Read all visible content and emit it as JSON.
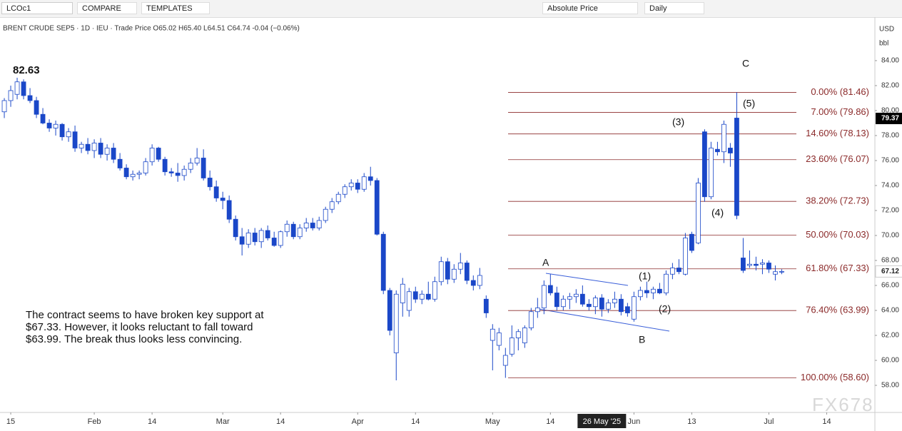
{
  "toolbar": {
    "symbol": "LCOc1",
    "compare": "COMPARE",
    "templates": "TEMPLATES",
    "price_mode": "Absolute Price",
    "interval": "Daily"
  },
  "legend_line": "BRENT CRUDE SEP5 · 1D · IEU · Trade Price O65.02 H65.40 L64.51 C64.74 -0.04 (−0.06%)",
  "currency": "USD",
  "unit": "bbl",
  "watermark": "FX678",
  "chart_data": {
    "type": "candlestick",
    "ohlc": [
      [
        79.9,
        81.0,
        79.4,
        80.8
      ],
      [
        80.8,
        82.0,
        80.3,
        81.6
      ],
      [
        81.3,
        82.63,
        80.9,
        82.3
      ],
      [
        82.3,
        82.5,
        80.9,
        81.2
      ],
      [
        81.2,
        81.8,
        80.6,
        80.8
      ],
      [
        80.8,
        81.1,
        79.4,
        79.7
      ],
      [
        79.7,
        80.2,
        78.9,
        79.0
      ],
      [
        79.0,
        79.3,
        78.3,
        78.6
      ],
      [
        78.6,
        79.2,
        78.0,
        78.9
      ],
      [
        78.9,
        79.0,
        77.6,
        77.9
      ],
      [
        77.9,
        78.6,
        77.5,
        78.3
      ],
      [
        78.3,
        78.8,
        76.7,
        77.0
      ],
      [
        77.0,
        77.5,
        76.6,
        77.3
      ],
      [
        77.3,
        77.8,
        76.5,
        76.8
      ],
      [
        76.8,
        77.7,
        76.2,
        77.4
      ],
      [
        77.4,
        77.8,
        76.2,
        76.5
      ],
      [
        76.5,
        77.3,
        76.0,
        77.0
      ],
      [
        77.0,
        77.4,
        75.8,
        76.1
      ],
      [
        76.1,
        76.6,
        75.2,
        75.4
      ],
      [
        75.4,
        75.7,
        74.5,
        74.7
      ],
      [
        74.7,
        75.2,
        74.4,
        74.9
      ],
      [
        74.9,
        75.2,
        74.5,
        75.0
      ],
      [
        75.0,
        76.2,
        74.8,
        75.9
      ],
      [
        75.9,
        77.3,
        75.6,
        77.0
      ],
      [
        77.0,
        77.1,
        75.9,
        76.1
      ],
      [
        76.1,
        76.3,
        74.8,
        75.1
      ],
      [
        75.1,
        75.4,
        74.7,
        75.0
      ],
      [
        75.0,
        75.8,
        74.3,
        74.8
      ],
      [
        74.8,
        75.6,
        74.4,
        75.3
      ],
      [
        75.3,
        76.2,
        75.0,
        75.8
      ],
      [
        75.8,
        77.0,
        75.6,
        76.2
      ],
      [
        76.2,
        76.9,
        74.4,
        74.6
      ],
      [
        74.6,
        75.2,
        73.6,
        73.9
      ],
      [
        73.9,
        74.4,
        72.7,
        73.0
      ],
      [
        73.0,
        73.5,
        72.1,
        72.8
      ],
      [
        72.8,
        73.2,
        71.0,
        71.3
      ],
      [
        71.3,
        71.6,
        69.6,
        69.9
      ],
      [
        69.9,
        70.6,
        68.4,
        69.3
      ],
      [
        69.3,
        70.5,
        69.0,
        70.2
      ],
      [
        70.2,
        70.6,
        69.2,
        69.5
      ],
      [
        69.5,
        70.6,
        69.0,
        70.4
      ],
      [
        70.4,
        70.8,
        69.6,
        69.8
      ],
      [
        69.8,
        70.3,
        69.1,
        69.2
      ],
      [
        69.2,
        70.4,
        69.0,
        70.3
      ],
      [
        70.3,
        71.2,
        69.9,
        70.9
      ],
      [
        70.9,
        71.1,
        69.7,
        69.9
      ],
      [
        69.9,
        70.9,
        69.7,
        70.6
      ],
      [
        70.6,
        71.4,
        70.3,
        71.0
      ],
      [
        71.0,
        71.4,
        70.4,
        70.6
      ],
      [
        70.6,
        71.5,
        70.4,
        71.2
      ],
      [
        71.2,
        72.3,
        71.0,
        72.1
      ],
      [
        72.1,
        73.0,
        71.8,
        72.7
      ],
      [
        72.7,
        73.5,
        72.5,
        73.3
      ],
      [
        73.3,
        74.1,
        73.0,
        73.9
      ],
      [
        73.9,
        74.5,
        73.6,
        74.2
      ],
      [
        74.2,
        74.5,
        73.4,
        73.7
      ],
      [
        73.7,
        75.0,
        73.5,
        74.7
      ],
      [
        74.7,
        75.5,
        74.0,
        74.4
      ],
      [
        74.4,
        74.6,
        70.0,
        70.1
      ],
      [
        70.1,
        70.3,
        65.3,
        65.6
      ],
      [
        65.6,
        65.8,
        62.0,
        62.4
      ],
      [
        60.6,
        65.6,
        58.4,
        65.3
      ],
      [
        64.6,
        66.6,
        63.5,
        66.1
      ],
      [
        64.0,
        65.8,
        63.5,
        65.5
      ],
      [
        65.5,
        65.9,
        64.6,
        64.9
      ],
      [
        64.9,
        65.6,
        64.5,
        65.3
      ],
      [
        65.3,
        66.3,
        64.8,
        64.9
      ],
      [
        64.9,
        66.7,
        64.7,
        66.3
      ],
      [
        66.3,
        68.3,
        66.0,
        67.9
      ],
      [
        67.9,
        68.2,
        66.1,
        66.5
      ],
      [
        66.5,
        67.7,
        66.2,
        67.3
      ],
      [
        67.3,
        68.6,
        66.9,
        67.8
      ],
      [
        67.8,
        68.0,
        66.1,
        66.4
      ],
      [
        66.4,
        66.8,
        65.6,
        66.0
      ],
      [
        66.0,
        67.4,
        65.7,
        66.8
      ],
      [
        64.9,
        65.2,
        63.4,
        63.8
      ],
      [
        61.6,
        62.9,
        59.2,
        62.5
      ],
      [
        61.2,
        62.6,
        60.8,
        62.2
      ],
      [
        59.6,
        61.0,
        58.6,
        60.4
      ],
      [
        60.5,
        62.8,
        60.3,
        61.8
      ],
      [
        61.8,
        62.5,
        60.8,
        62.3
      ],
      [
        61.4,
        62.8,
        61.0,
        62.6
      ],
      [
        62.6,
        64.2,
        62.4,
        63.9
      ],
      [
        63.9,
        65.0,
        63.4,
        64.2
      ],
      [
        64.2,
        66.4,
        63.7,
        66.0
      ],
      [
        66.0,
        66.9,
        65.2,
        65.4
      ],
      [
        65.4,
        65.9,
        64.0,
        64.3
      ],
      [
        64.3,
        65.2,
        64.0,
        64.9
      ],
      [
        64.9,
        65.4,
        64.1,
        65.1
      ],
      [
        65.1,
        65.7,
        64.6,
        65.3
      ],
      [
        65.3,
        66.0,
        64.3,
        64.5
      ],
      [
        64.5,
        64.9,
        64.0,
        64.3
      ],
      [
        64.3,
        65.2,
        63.7,
        65.0
      ],
      [
        65.0,
        65.3,
        63.5,
        64.1
      ],
      [
        64.1,
        64.9,
        63.8,
        64.6
      ],
      [
        64.6,
        65.5,
        64.2,
        64.9
      ],
      [
        64.9,
        65.3,
        63.6,
        63.9
      ],
      [
        64.3,
        64.6,
        63.5,
        63.8
      ],
      [
        63.3,
        65.5,
        63.1,
        65.1
      ],
      [
        65.1,
        65.9,
        64.8,
        65.6
      ],
      [
        65.6,
        66.3,
        65.0,
        65.4
      ],
      [
        65.4,
        65.9,
        64.9,
        65.7
      ],
      [
        65.7,
        66.2,
        65.3,
        65.4
      ],
      [
        65.4,
        67.2,
        65.2,
        66.9
      ],
      [
        66.9,
        67.8,
        66.5,
        67.4
      ],
      [
        67.4,
        68.1,
        66.9,
        67.1
      ],
      [
        66.9,
        70.2,
        66.8,
        69.8
      ],
      [
        70.1,
        70.3,
        68.6,
        68.8
      ],
      [
        69.4,
        74.6,
        69.3,
        74.2
      ],
      [
        78.3,
        78.5,
        72.7,
        73.1
      ],
      [
        73.1,
        77.5,
        72.9,
        77.0
      ],
      [
        76.9,
        77.5,
        76.4,
        76.7
      ],
      [
        76.7,
        79.2,
        75.8,
        78.9
      ],
      [
        77.0,
        77.4,
        75.5,
        76.6
      ],
      [
        79.4,
        81.46,
        71.3,
        71.6
      ],
      [
        68.2,
        69.8,
        67.0,
        67.2
      ],
      [
        67.6,
        68.8,
        67.4,
        67.7
      ],
      [
        67.7,
        68.3,
        67.2,
        67.6
      ],
      [
        67.7,
        68.1,
        66.9,
        67.8
      ],
      [
        67.8,
        68.0,
        67.0,
        67.3
      ],
      [
        66.9,
        67.6,
        66.4,
        67.1
      ],
      [
        67.1,
        67.3,
        66.9,
        67.12
      ]
    ],
    "up_color": "#ffffff",
    "down_color": "#1a47c8",
    "line_color": "#1a47c8",
    "xlim": [
      -0.67,
      135.5
    ],
    "xticks": [
      {
        "value": 1,
        "label": "15"
      },
      {
        "value": 14,
        "label": "Feb"
      },
      {
        "value": 23,
        "label": "14"
      },
      {
        "value": 34,
        "label": "Mar"
      },
      {
        "value": 43,
        "label": "14"
      },
      {
        "value": 55,
        "label": "Apr"
      },
      {
        "value": 64,
        "label": "14"
      },
      {
        "value": 76,
        "label": "May"
      },
      {
        "value": 85,
        "label": "14"
      },
      {
        "value": 98,
        "label": "Jun"
      },
      {
        "value": 107,
        "label": "13"
      },
      {
        "value": 119,
        "label": "Jul"
      },
      {
        "value": 128,
        "label": "14"
      }
    ],
    "crosshair": {
      "value": 93,
      "label": "26 May '25"
    },
    "ylim": [
      55.83,
      87.14
    ],
    "yticks": [
      {
        "value": 58,
        "label": "58.00"
      },
      {
        "value": 60,
        "label": "60.00"
      },
      {
        "value": 62,
        "label": "62.00"
      },
      {
        "value": 64,
        "label": "64.00"
      },
      {
        "value": 66,
        "label": "66.00"
      },
      {
        "value": 68,
        "label": "68.00"
      },
      {
        "value": 70,
        "label": "70.00"
      },
      {
        "value": 72,
        "label": "72.00"
      },
      {
        "value": 74,
        "label": "74.00"
      },
      {
        "value": 76,
        "label": "76.00"
      },
      {
        "value": 78,
        "label": "78.00"
      },
      {
        "value": 80,
        "label": "80.00"
      },
      {
        "value": 82,
        "label": "82.00"
      },
      {
        "value": 84,
        "label": "84.00"
      }
    ],
    "price_tags": [
      {
        "value": 79.37,
        "label": "79.37",
        "color": "#000000"
      },
      {
        "value": 67.12,
        "label": "67.12",
        "color": "#ffffff"
      }
    ],
    "fib_levels": [
      {
        "value": 81.46,
        "label": "0.00% (81.46)"
      },
      {
        "value": 79.86,
        "label": "7.00% (79.86)"
      },
      {
        "value": 78.13,
        "label": "14.60% (78.13)"
      },
      {
        "value": 76.07,
        "label": "23.60% (76.07)"
      },
      {
        "value": 72.73,
        "label": "38.20% (72.73)"
      },
      {
        "value": 70.03,
        "label": "50.00% (70.03)"
      },
      {
        "value": 67.33,
        "label": "61.80% (67.33)"
      },
      {
        "value": 63.99,
        "label": "76.40% (63.99)"
      },
      {
        "value": 58.6,
        "label": "100.00% (58.60)"
      }
    ],
    "fib_color": "#8b2a2a",
    "annotations": {
      "high_label": "82.63",
      "wave_a": "A",
      "wave_b": "B",
      "wave_c": "C",
      "wave_1": "(1)",
      "wave_2": "(2)",
      "wave_3": "(3)",
      "wave_4": "(4)",
      "wave_5": "(5)"
    },
    "comment": [
      "The contract seems to have broken key support at",
      "$67.33. However, it looks reluctant to fall toward",
      "$63.99.  The break thus looks less convincing."
    ]
  }
}
